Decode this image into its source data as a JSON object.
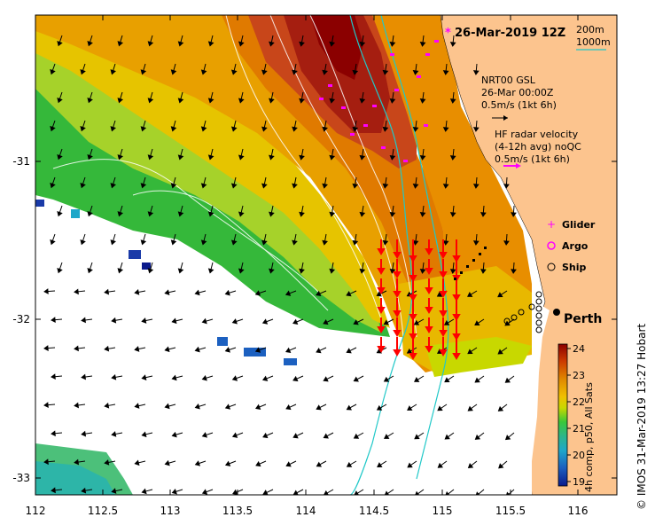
{
  "map": {
    "date_title": "26-Mar-2019 12Z",
    "credit": "© IMOS 31-Mar-2019 13:27 Hobart",
    "city_label": "Perth",
    "x_ticks": [
      "112",
      "112.5",
      "113",
      "113.5",
      "114",
      "114.5",
      "115",
      "115.5",
      "116"
    ],
    "y_ticks": [
      "-31",
      "-32",
      "-33"
    ],
    "isobath_legend": [
      "200m",
      "1000m"
    ],
    "wind_legend": {
      "title": "NRT00 GSL",
      "time": "26-Mar 00:00Z",
      "scale": "0.5m/s (1kt 6h)"
    },
    "radar_legend": {
      "title": "HF radar velocity",
      "subtitle": "(4-12h avg) noQC",
      "scale": "0.5m/s (1kt 6h)"
    },
    "markers_legend": [
      {
        "label": "Glider",
        "color": "#ff00ff",
        "symbol": "plus"
      },
      {
        "label": "Argo",
        "color": "#ff00ff",
        "symbol": "circle-star"
      },
      {
        "label": "Ship",
        "color": "#000000",
        "symbol": "circle"
      }
    ],
    "colorbar": {
      "label": "4h comp, p50, All Sats",
      "ticks": [
        "24",
        "23",
        "22",
        "21",
        "20",
        "19"
      ],
      "stops": [
        "#8b0000",
        "#cc3a00",
        "#e08a00",
        "#f0c000",
        "#c8d800",
        "#39c83a",
        "#2db58a",
        "#1fa7c9",
        "#1c60c0",
        "#0a1a8c"
      ]
    },
    "colors": {
      "land": "#fcc48e",
      "isobath_200": "#20c8c8",
      "isobath_1000": "#40e0d0",
      "radar_arrow": "#ff0000",
      "wind_arrow": "#000000"
    }
  }
}
